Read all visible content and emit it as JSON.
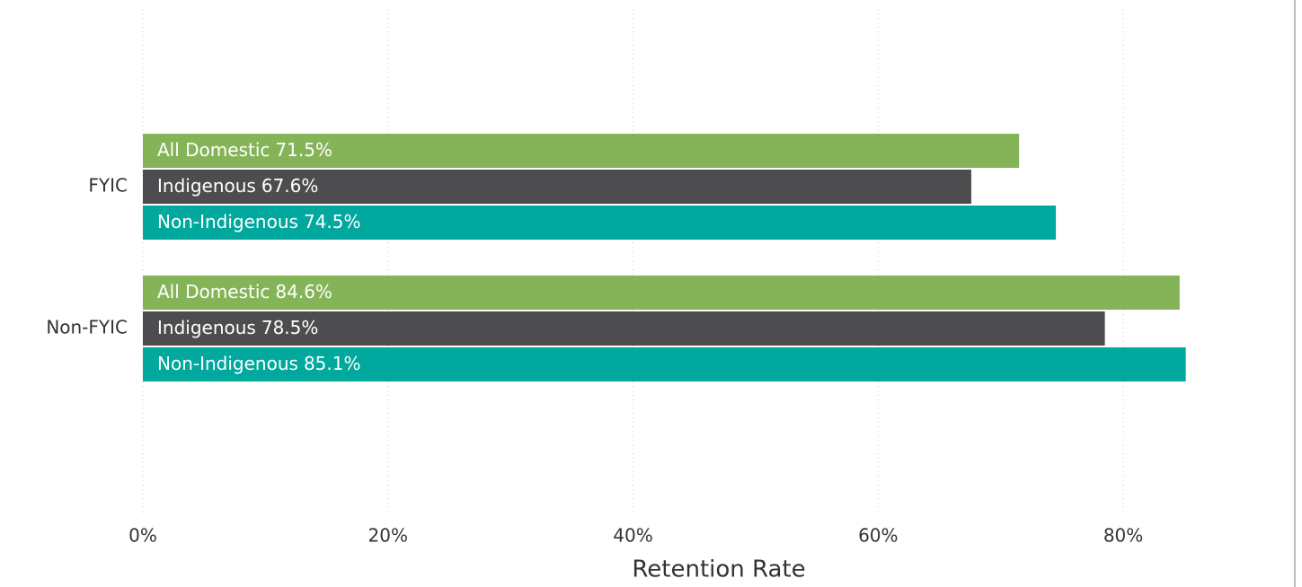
{
  "chart_data": {
    "type": "bar",
    "orientation": "horizontal",
    "x_label": "Retention Rate",
    "categories": [
      "FYIC",
      "Non-FYIC"
    ],
    "series": [
      {
        "name": "All Domestic",
        "color": "#84b457",
        "values": [
          71.5,
          84.6
        ],
        "value_labels": [
          "71.5%",
          "84.6%"
        ]
      },
      {
        "name": "Indigenous",
        "color": "#4d4d4f",
        "values": [
          67.6,
          78.5
        ],
        "value_labels": [
          "67.6%",
          "78.5%"
        ]
      },
      {
        "name": "Non-Indigenous",
        "color": "#00a89d",
        "values": [
          74.5,
          85.1
        ],
        "value_labels": [
          "74.5%",
          "85.1%"
        ]
      }
    ],
    "xlim": [
      0,
      94
    ],
    "xticks": [
      {
        "value": 0,
        "label": "0%"
      },
      {
        "value": 20,
        "label": "20%"
      },
      {
        "value": 40,
        "label": "40%"
      },
      {
        "value": 60,
        "label": "60%"
      },
      {
        "value": 80,
        "label": "80%"
      }
    ],
    "grid": true
  }
}
